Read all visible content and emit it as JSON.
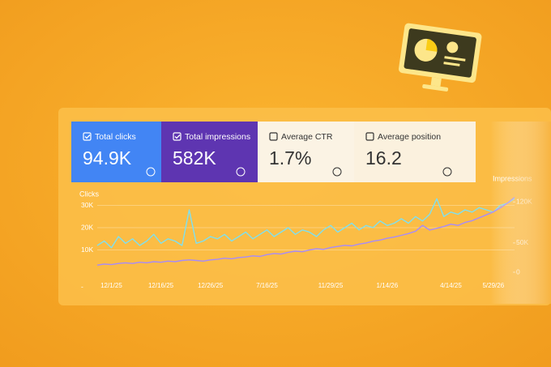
{
  "cards": [
    {
      "label": "Total clicks",
      "value": "94.9K",
      "checked": true,
      "color": "#4285f4"
    },
    {
      "label": "Total impressions",
      "value": "582K",
      "checked": true,
      "color": "#5e35b1"
    },
    {
      "label": "Average CTR",
      "value": "1.7%",
      "checked": false,
      "color": "#fbf3e4"
    },
    {
      "label": "Average position",
      "value": "16.2",
      "checked": false,
      "color": "#fbf1de"
    }
  ],
  "chart_data": {
    "type": "line",
    "categories": [
      null,
      null,
      "12/1/25",
      null,
      null,
      null,
      null,
      null,
      null,
      "12/16/25",
      null,
      null,
      null,
      null,
      null,
      null,
      "12/26/25",
      null,
      null,
      null,
      null,
      null,
      null,
      null,
      "7/16/25",
      null,
      null,
      null,
      null,
      null,
      null,
      null,
      null,
      "11/29/25",
      null,
      null,
      null,
      null,
      null,
      null,
      null,
      "1/14/26",
      null,
      null,
      null,
      null,
      null,
      null,
      null,
      null,
      "4/14/25",
      null,
      null,
      null,
      null,
      null,
      "5/29/26",
      null,
      null,
      null
    ],
    "series": [
      {
        "name": "Clicks",
        "color": "#7fe0f0",
        "values": [
          12000,
          14000,
          11000,
          16000,
          13000,
          15000,
          12000,
          14000,
          17000,
          13000,
          15000,
          14000,
          12000,
          28000,
          13000,
          14000,
          16000,
          15000,
          17000,
          14000,
          16000,
          18000,
          15000,
          17000,
          19000,
          16000,
          18000,
          20000,
          17000,
          19000,
          18000,
          16000,
          19000,
          21000,
          18000,
          20000,
          22000,
          19000,
          21000,
          20000,
          23000,
          21000,
          22000,
          24000,
          22000,
          25000,
          23000,
          26000,
          33000,
          25000,
          27000,
          26000,
          28000,
          27000,
          29000,
          28000,
          27000,
          30000,
          31000,
          33000
        ]
      },
      {
        "name": "Impressions",
        "color": "#a78bfa",
        "axis": "y2",
        "values": [
          12000,
          14000,
          13000,
          15000,
          16000,
          15000,
          17000,
          16000,
          18000,
          17000,
          19000,
          18000,
          20000,
          21000,
          20000,
          19000,
          21000,
          22000,
          24000,
          23000,
          25000,
          26000,
          28000,
          27000,
          30000,
          32000,
          31000,
          34000,
          36000,
          35000,
          38000,
          40000,
          39000,
          42000,
          44000,
          46000,
          45000,
          48000,
          50000,
          53000,
          55000,
          58000,
          60000,
          63000,
          66000,
          70000,
          80000,
          72000,
          75000,
          78000,
          82000,
          80000,
          85000,
          88000,
          93000,
          98000,
          103000,
          110000,
          118000,
          128000
        ]
      }
    ],
    "ylim": [
      0,
      36000
    ],
    "yticks": [
      {
        "value": 0,
        "label": "-"
      },
      {
        "value": 10000,
        "label": "10K"
      },
      {
        "value": 20000,
        "label": "20K"
      },
      {
        "value": 30000,
        "label": "30K"
      }
    ],
    "y2lim": [
      0,
      137000
    ],
    "y2ticks": [
      0,
      {
        "value": 50000,
        "label": "50K"
      },
      {
        "value": 120000,
        "label": "120K"
      }
    ],
    "grid": true
  }
}
